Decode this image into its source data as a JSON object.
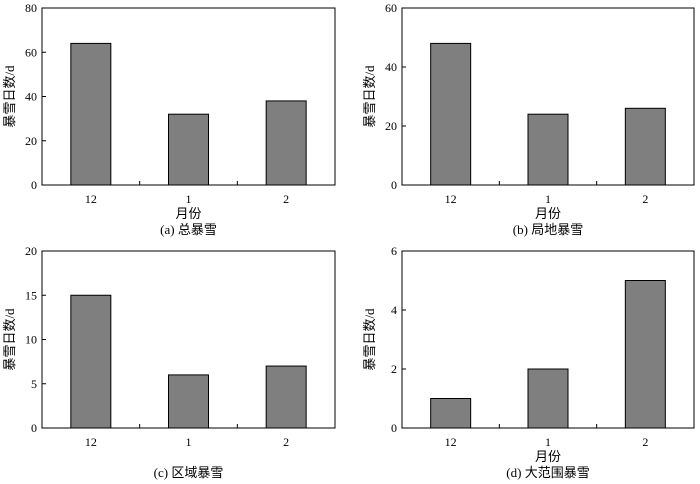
{
  "chart_data": [
    {
      "type": "bar",
      "categories": [
        "12",
        "1",
        "2"
      ],
      "values": [
        64,
        32,
        38
      ],
      "ylim": [
        0,
        80
      ],
      "yticks": [
        0,
        20,
        40,
        60,
        80
      ],
      "xlabel": "月份",
      "ylabel": "暴雪日数/d",
      "caption": "(a) 总暴雪",
      "bar_color": "#7f7f7f"
    },
    {
      "type": "bar",
      "categories": [
        "12",
        "1",
        "2"
      ],
      "values": [
        48,
        24,
        26
      ],
      "ylim": [
        0,
        60
      ],
      "yticks": [
        0,
        20,
        40,
        60
      ],
      "xlabel": "月份",
      "ylabel": "暴雪日数/d",
      "caption": "(b) 局地暴雪",
      "bar_color": "#7f7f7f"
    },
    {
      "type": "bar",
      "categories": [
        "12",
        "1",
        "2"
      ],
      "values": [
        15,
        6,
        7
      ],
      "ylim": [
        0,
        20
      ],
      "yticks": [
        0,
        5,
        10,
        15,
        20
      ],
      "xlabel": "",
      "ylabel": "暴雪日数/d",
      "caption": "(c) 区域暴雪",
      "bar_color": "#7f7f7f"
    },
    {
      "type": "bar",
      "categories": [
        "12",
        "1",
        "2"
      ],
      "values": [
        1,
        2,
        5
      ],
      "ylim": [
        0,
        6
      ],
      "yticks": [
        0,
        2,
        4,
        6
      ],
      "xlabel": "月份",
      "ylabel": "暴雪日数/d",
      "caption": "(d) 大范围暴雪",
      "bar_color": "#7f7f7f"
    }
  ]
}
